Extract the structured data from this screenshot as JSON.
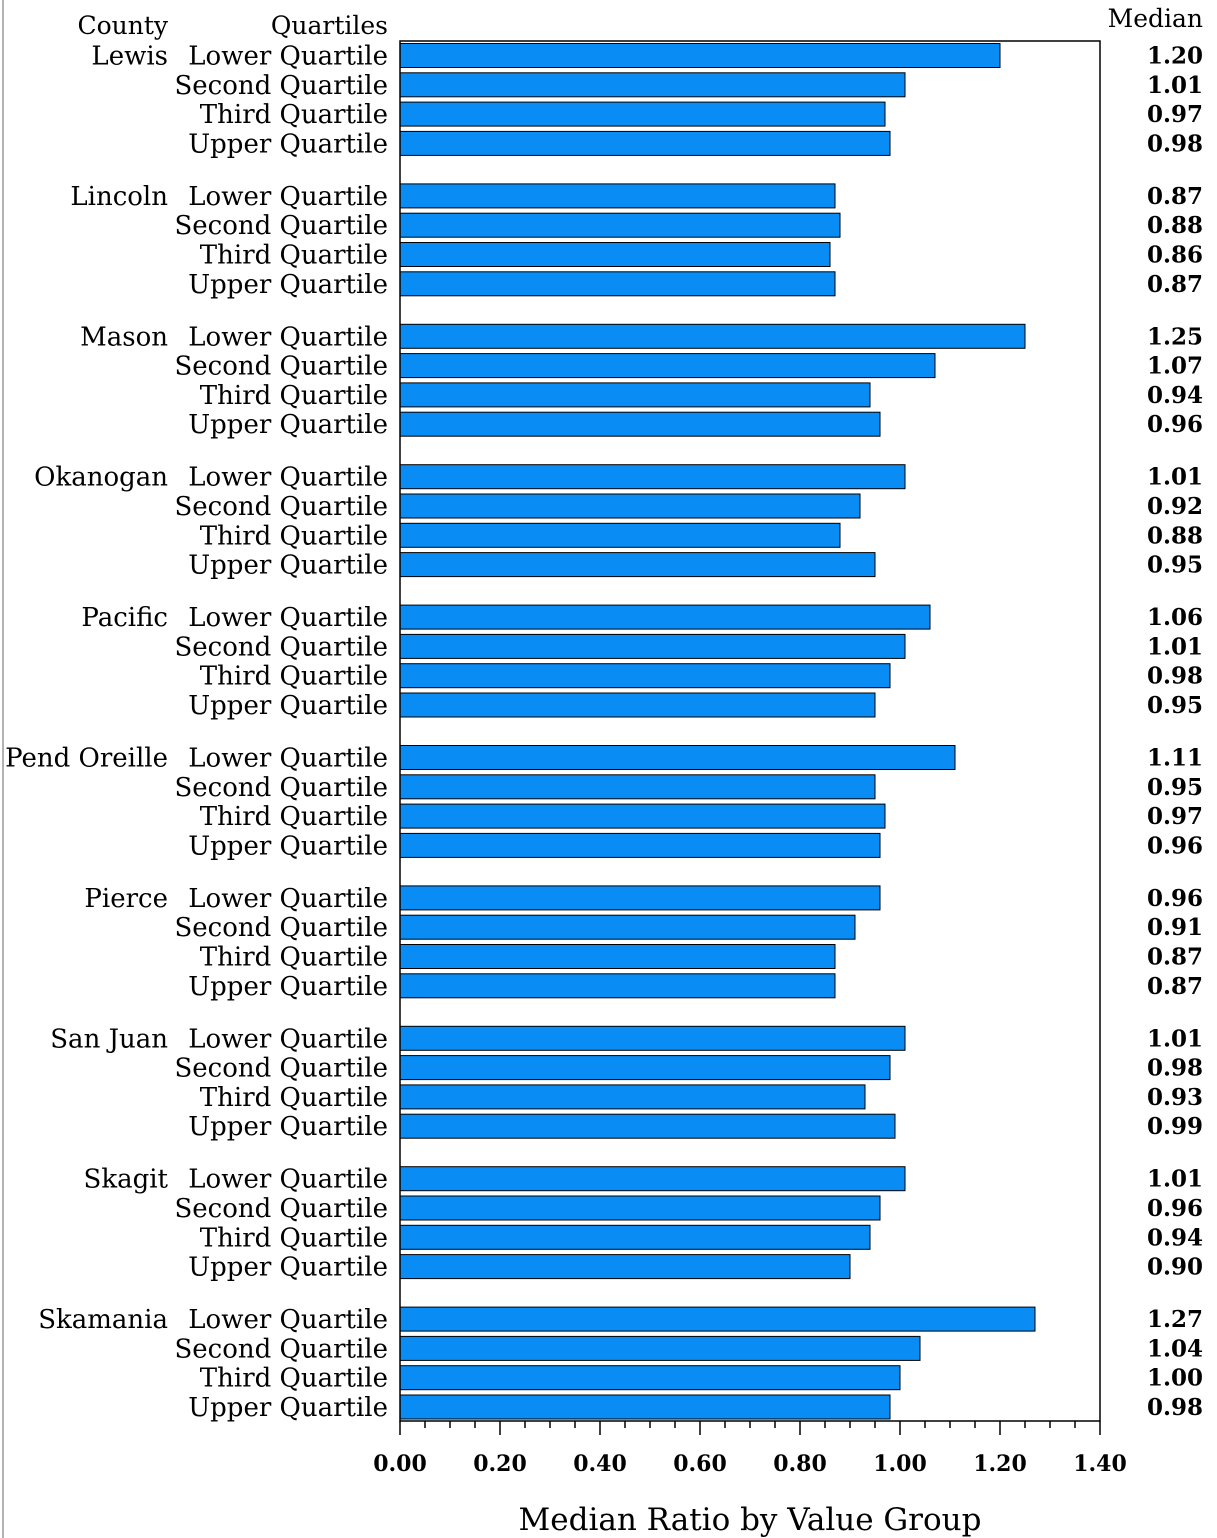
{
  "chart_data": {
    "type": "bar",
    "orientation": "horizontal",
    "headers": {
      "county": "County",
      "quartiles": "Quartiles",
      "median": "Median"
    },
    "xlabel": "Median Ratio by Value Group",
    "xlim": [
      0,
      1.4
    ],
    "xticks": [
      "0.00",
      "0.20",
      "0.40",
      "0.60",
      "0.80",
      "1.00",
      "1.20",
      "1.40"
    ],
    "bar_color": "#0A8CF5",
    "quartile_labels": [
      "Lower Quartile",
      "Second Quartile",
      "Third Quartile",
      "Upper Quartile"
    ],
    "groups": [
      {
        "county": "Lewis",
        "values": [
          1.2,
          1.01,
          0.97,
          0.98
        ],
        "labels": [
          "1.20",
          "1.01",
          "0.97",
          "0.98"
        ]
      },
      {
        "county": "Lincoln",
        "values": [
          0.87,
          0.88,
          0.86,
          0.87
        ],
        "labels": [
          "0.87",
          "0.88",
          "0.86",
          "0.87"
        ]
      },
      {
        "county": "Mason",
        "values": [
          1.25,
          1.07,
          0.94,
          0.96
        ],
        "labels": [
          "1.25",
          "1.07",
          "0.94",
          "0.96"
        ]
      },
      {
        "county": "Okanogan",
        "values": [
          1.01,
          0.92,
          0.88,
          0.95
        ],
        "labels": [
          "1.01",
          "0.92",
          "0.88",
          "0.95"
        ]
      },
      {
        "county": "Pacific",
        "values": [
          1.06,
          1.01,
          0.98,
          0.95
        ],
        "labels": [
          "1.06",
          "1.01",
          "0.98",
          "0.95"
        ]
      },
      {
        "county": "Pend Oreille",
        "values": [
          1.11,
          0.95,
          0.97,
          0.96
        ],
        "labels": [
          "1.11",
          "0.95",
          "0.97",
          "0.96"
        ]
      },
      {
        "county": "Pierce",
        "values": [
          0.96,
          0.91,
          0.87,
          0.87
        ],
        "labels": [
          "0.96",
          "0.91",
          "0.87",
          "0.87"
        ]
      },
      {
        "county": "San Juan",
        "values": [
          1.01,
          0.98,
          0.93,
          0.99
        ],
        "labels": [
          "1.01",
          "0.98",
          "0.93",
          "0.99"
        ]
      },
      {
        "county": "Skagit",
        "values": [
          1.01,
          0.96,
          0.94,
          0.9
        ],
        "labels": [
          "1.01",
          "0.96",
          "0.94",
          "0.90"
        ]
      },
      {
        "county": "Skamania",
        "values": [
          1.27,
          1.04,
          1.0,
          0.98
        ],
        "labels": [
          "1.27",
          "1.04",
          "1.00",
          "0.98"
        ]
      }
    ]
  }
}
